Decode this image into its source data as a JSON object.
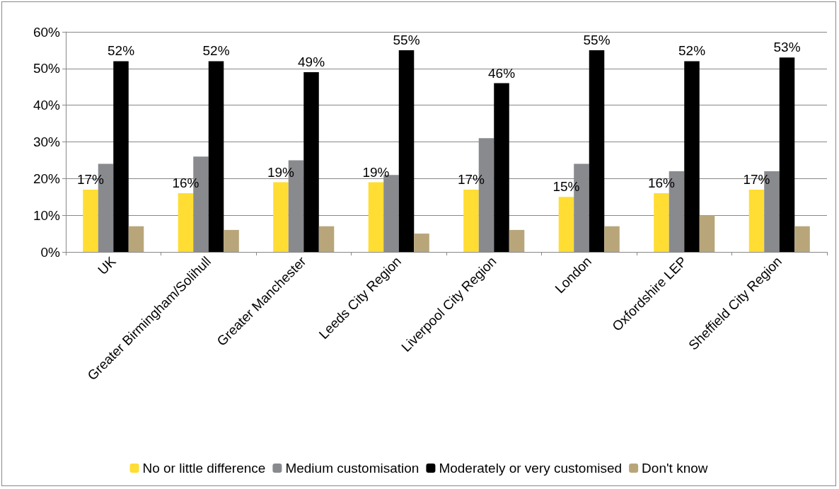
{
  "chart_data": {
    "type": "bar",
    "categories": [
      "UK",
      "Greater Birmingham/Solihull",
      "Greater Manchester",
      "Leeds City Region",
      "Liverpool City Region",
      "London",
      "Oxfordshire LEP",
      "Sheffield City Region"
    ],
    "series": [
      {
        "name": "No or little difference",
        "color": "#ffdd33",
        "values": [
          17,
          16,
          19,
          19,
          17,
          15,
          16,
          17
        ],
        "value_labels": [
          "17%",
          "16%",
          "19%",
          "19%",
          "17%",
          "15%",
          "16%",
          "17%"
        ]
      },
      {
        "name": "Medium customisation",
        "color": "#898a8e",
        "values": [
          24,
          26,
          25,
          21,
          31,
          24,
          22,
          22
        ]
      },
      {
        "name": "Moderately or very customised",
        "color": "#000000",
        "values": [
          52,
          52,
          49,
          55,
          46,
          55,
          52,
          53
        ],
        "value_labels": [
          "52%",
          "52%",
          "49%",
          "55%",
          "46%",
          "55%",
          "52%",
          "53%"
        ]
      },
      {
        "name": "Don't know",
        "color": "#b8a67a",
        "values": [
          7,
          6,
          7,
          5,
          6,
          7,
          10,
          7
        ]
      }
    ],
    "ylim": [
      0,
      60
    ],
    "yticks": [
      {
        "value": 0,
        "label": "0%"
      },
      {
        "value": 10,
        "label": "10%"
      },
      {
        "value": 20,
        "label": "20%"
      },
      {
        "value": 30,
        "label": "30%"
      },
      {
        "value": 40,
        "label": "40%"
      },
      {
        "value": 50,
        "label": "50%"
      },
      {
        "value": 60,
        "label": "60%"
      }
    ],
    "grid": "y",
    "legend": "bottom"
  }
}
